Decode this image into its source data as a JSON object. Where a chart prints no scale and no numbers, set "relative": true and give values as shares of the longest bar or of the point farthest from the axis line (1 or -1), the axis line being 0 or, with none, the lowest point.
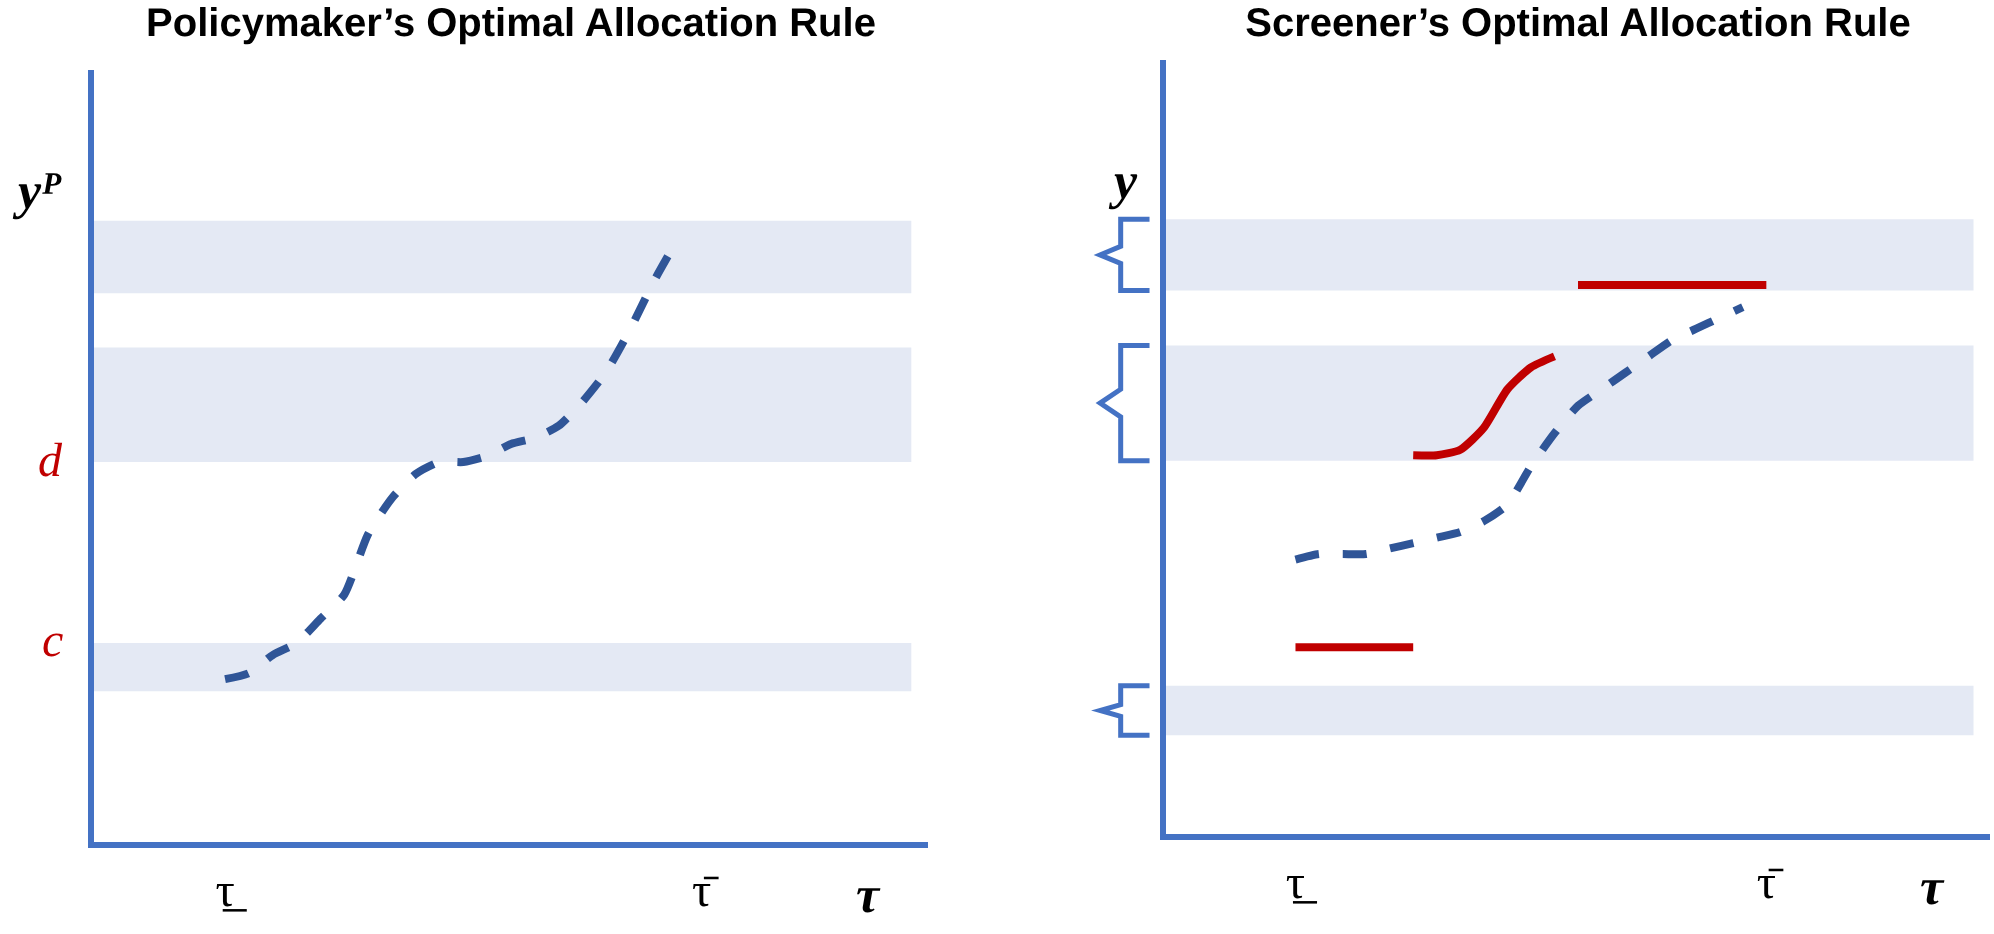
{
  "chart_data": [
    {
      "type": "line",
      "title": "Policymaker’s Optimal Allocation Rule",
      "xlabel": "τ",
      "ylabel": "yᴾ",
      "relative": true,
      "categories": [
        null,
        null,
        null,
        null,
        null,
        "τ̲",
        null,
        null,
        null,
        null,
        null,
        null,
        null,
        null,
        null,
        null,
        null,
        null,
        null,
        null,
        null,
        null,
        null,
        null,
        null,
        "τ̄",
        null,
        null,
        null,
        null,
        null,
        null,
        null,
        null,
        null
      ],
      "series": [
        {
          "color": "#2f5597",
          "line_style": "dashed",
          "values": [
            null,
            null,
            null,
            null,
            null,
            0.27,
            0.28,
            0.31,
            0.33,
            0.37,
            0.41,
            0.51,
            0.57,
            0.61,
            0.63,
            0.63,
            0.64,
            0.66,
            0.67,
            0.69,
            0.73,
            0.78,
            0.85,
            0.93,
            1,
            null,
            null,
            null,
            null,
            null,
            null,
            null,
            null,
            null,
            null
          ]
        }
      ],
      "bands": [
        {
          "axis": "y",
          "from": 0.91,
          "to": 1.03,
          "color": "#e4e9f4"
        },
        {
          "axis": "y",
          "from": 0.63,
          "to": 0.82,
          "color": "#e4e9f4",
          "label": "d"
        },
        {
          "axis": "y",
          "from": 0.33,
          "to": 0.25,
          "color": "#e4e9f4",
          "label": "c"
        }
      ],
      "grid": false,
      "marker": "none"
    },
    {
      "type": "line",
      "title": "Screener’s Optimal Allocation Rule",
      "xlabel": "τ",
      "ylabel": "y",
      "relative": true,
      "categories": [
        null,
        null,
        null,
        null,
        null,
        "τ̲",
        null,
        null,
        null,
        null,
        null,
        null,
        null,
        null,
        null,
        null,
        null,
        null,
        null,
        null,
        null,
        null,
        null,
        null,
        null,
        "τ̄",
        null,
        null,
        null,
        null,
        null,
        null,
        null,
        null,
        null
      ],
      "series": [
        {
          "color": "#2f5597",
          "line_style": "dashed",
          "values": [
            null,
            null,
            null,
            null,
            null,
            0.5,
            0.51,
            0.51,
            0.51,
            0.52,
            0.53,
            0.54,
            0.55,
            0.57,
            0.6,
            0.67,
            0.73,
            0.78,
            0.81,
            0.84,
            0.87,
            0.9,
            0.92,
            0.94,
            0.96,
            null,
            null,
            null,
            null,
            null,
            null,
            null,
            null,
            null,
            null
          ]
        },
        {
          "color": "#c00000",
          "line_style": "solid",
          "values": [
            null,
            null,
            null,
            null,
            null,
            0.34,
            0.34,
            0.34,
            0.34,
            0.34,
            0.34,
            null,
            null,
            null,
            null,
            null,
            null,
            null,
            null,
            null,
            null,
            null,
            null,
            null,
            null,
            null,
            null,
            null,
            null,
            null,
            null,
            null,
            null,
            null,
            null
          ]
        },
        {
          "color": "#c00000",
          "line_style": "solid",
          "values": [
            null,
            null,
            null,
            null,
            null,
            null,
            null,
            null,
            null,
            null,
            0.69,
            0.69,
            0.7,
            0.74,
            0.81,
            0.85,
            0.87,
            null,
            null,
            null,
            null,
            null,
            null,
            null,
            null,
            null,
            null,
            null,
            null,
            null,
            null,
            null,
            null,
            null,
            null
          ]
        },
        {
          "color": "#c00000",
          "line_style": "solid",
          "values": [
            null,
            null,
            null,
            null,
            null,
            null,
            null,
            null,
            null,
            null,
            null,
            null,
            null,
            null,
            null,
            null,
            null,
            1,
            1,
            1,
            1,
            1,
            1,
            1,
            1,
            1,
            null,
            null,
            null,
            null,
            null,
            null,
            null,
            null,
            null
          ]
        }
      ],
      "bands": [
        {
          "axis": "y",
          "from": 0.99,
          "to": 1.12,
          "color": "#e4e9f4"
        },
        {
          "axis": "y",
          "from": 0.68,
          "to": 0.89,
          "color": "#e4e9f4"
        },
        {
          "axis": "y",
          "from": 0.18,
          "to": 0.27,
          "color": "#e4e9f4"
        }
      ],
      "grid": false,
      "marker": "none"
    }
  ]
}
